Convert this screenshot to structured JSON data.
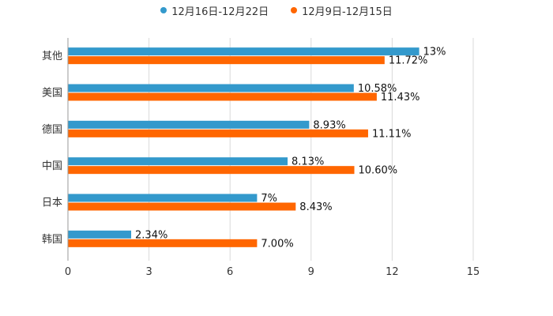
{
  "chart_data": {
    "type": "bar",
    "orientation": "horizontal",
    "title": "",
    "xlabel": "",
    "ylabel": "",
    "xlim": [
      0,
      15
    ],
    "x_ticks": [
      "0",
      "3",
      "6",
      "9",
      "12",
      "15"
    ],
    "grid": true,
    "legend_position": "top",
    "categories": [
      "其他",
      "美国",
      "德国",
      "中国",
      "日本",
      "韩国"
    ],
    "series": [
      {
        "name": "12月16日-12月22日",
        "color": "#3399cc",
        "values": [
          13,
          10.58,
          8.93,
          8.13,
          7,
          2.34
        ],
        "labels": [
          "13%",
          "10.58%",
          "8.93%",
          "8.13%",
          "7%",
          "2.34%"
        ]
      },
      {
        "name": "12月9日-12月15日",
        "color": "#ff6600",
        "values": [
          11.72,
          11.43,
          11.11,
          10.6,
          8.43,
          7.0
        ],
        "labels": [
          "11.72%",
          "11.43%",
          "11.11%",
          "10.60%",
          "8.43%",
          "7.00%"
        ]
      }
    ]
  }
}
